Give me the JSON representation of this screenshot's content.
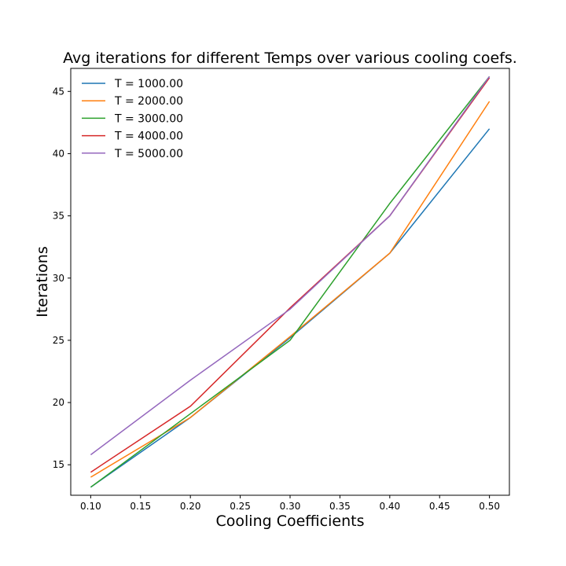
{
  "chart_data": {
    "type": "line",
    "title": "Avg iterations for different Temps over various cooling coefs.",
    "xlabel": "Cooling Coefficients",
    "ylabel": "Iterations",
    "x": [
      0.1,
      0.2,
      0.3,
      0.4,
      0.5
    ],
    "x_tick_labels": [
      "0.10",
      "0.15",
      "0.20",
      "0.25",
      "0.30",
      "0.35",
      "0.40",
      "0.45",
      "0.50"
    ],
    "y_tick_labels": [
      "15",
      "20",
      "25",
      "30",
      "35",
      "40",
      "45"
    ],
    "xlim": [
      0.08,
      0.52
    ],
    "ylim": [
      12.55,
      46.85
    ],
    "grid": false,
    "legend_position": "top-left",
    "series": [
      {
        "name": "T = 1000.00",
        "color": "#1f77b4",
        "values": [
          13.2,
          18.8,
          25.2,
          32.0,
          42.0
        ]
      },
      {
        "name": "T = 2000.00",
        "color": "#ff7f0e",
        "values": [
          14.0,
          18.8,
          25.3,
          32.0,
          44.2
        ]
      },
      {
        "name": "T = 3000.00",
        "color": "#2ca02c",
        "values": [
          13.2,
          19.1,
          25.0,
          36.0,
          46.2
        ]
      },
      {
        "name": "T = 4000.00",
        "color": "#d62728",
        "values": [
          14.4,
          19.7,
          27.6,
          35.0,
          46.1
        ]
      },
      {
        "name": "T = 5000.00",
        "color": "#9467bd",
        "values": [
          15.8,
          21.8,
          27.5,
          35.0,
          46.2
        ]
      }
    ]
  }
}
